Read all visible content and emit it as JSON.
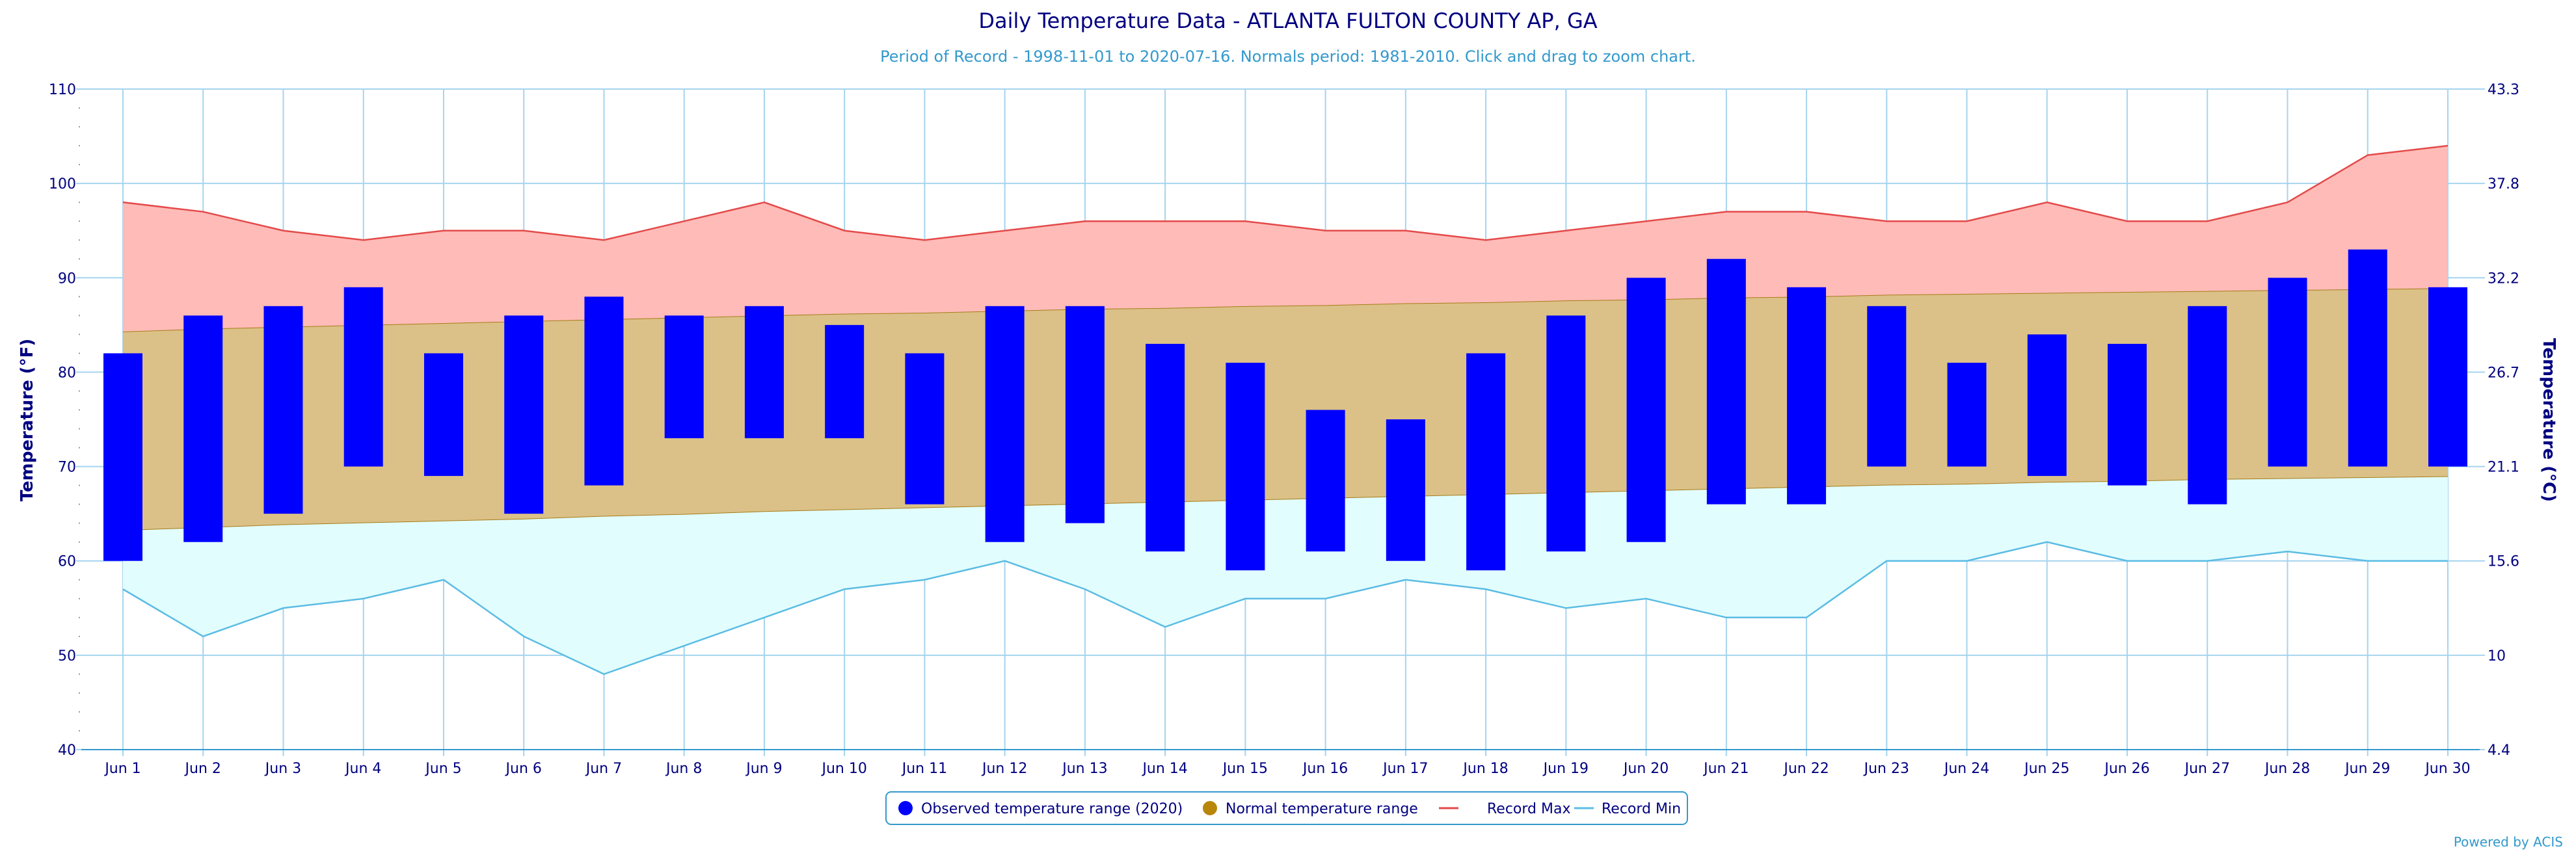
{
  "chart_data": {
    "type": "bar",
    "title": "Daily Temperature Data - ATLANTA FULTON COUNTY AP, GA",
    "subtitle": "Period of Record - 1998-11-01 to 2020-07-16. Normals period: 1981-2010. Click and drag to zoom chart.",
    "ylabel": "Temperature (°F)",
    "ylabel_right": "Temperature (°C)",
    "ylim": [
      40,
      110
    ],
    "yticks": [
      40,
      50,
      60,
      70,
      80,
      90,
      100,
      110
    ],
    "yticks_right": [
      "4.4",
      "10",
      "15.6",
      "21.1",
      "26.7",
      "32.2",
      "37.8",
      "43.3"
    ],
    "grid": true,
    "legend_position": "bottom-center",
    "categories": [
      "Jun 1",
      "Jun 2",
      "Jun 3",
      "Jun 4",
      "Jun 5",
      "Jun 6",
      "Jun 7",
      "Jun 8",
      "Jun 9",
      "Jun 10",
      "Jun 11",
      "Jun 12",
      "Jun 13",
      "Jun 14",
      "Jun 15",
      "Jun 16",
      "Jun 17",
      "Jun 18",
      "Jun 19",
      "Jun 20",
      "Jun 21",
      "Jun 22",
      "Jun 23",
      "Jun 24",
      "Jun 25",
      "Jun 26",
      "Jun 27",
      "Jun 28",
      "Jun 29",
      "Jun 30"
    ],
    "series": [
      {
        "name": "Observed temperature range (2020)",
        "type": "range-bar",
        "color": "#0000ff",
        "low": [
          60,
          62,
          65,
          70,
          69,
          65,
          68,
          73,
          73,
          73,
          66,
          62,
          64,
          61,
          59,
          61,
          60,
          59,
          61,
          62,
          66,
          66,
          70,
          70,
          69,
          68,
          66,
          70,
          70,
          70
        ],
        "high": [
          82,
          86,
          87,
          89,
          82,
          86,
          88,
          86,
          87,
          85,
          82,
          87,
          87,
          83,
          81,
          76,
          75,
          82,
          86,
          90,
          92,
          89,
          87,
          81,
          84,
          83,
          87,
          90,
          93,
          89
        ]
      },
      {
        "name": "Normal temperature range",
        "type": "range-area",
        "color": "#b8860b",
        "low": [
          63.2,
          63.5,
          63.8,
          64.0,
          64.2,
          64.4,
          64.7,
          64.9,
          65.2,
          65.4,
          65.6,
          65.8,
          66.0,
          66.2,
          66.4,
          66.6,
          66.8,
          67.0,
          67.2,
          67.4,
          67.6,
          67.8,
          68.0,
          68.1,
          68.3,
          68.4,
          68.6,
          68.7,
          68.8,
          68.9
        ],
        "high": [
          84.3,
          84.6,
          84.8,
          85.0,
          85.2,
          85.4,
          85.6,
          85.8,
          86.0,
          86.2,
          86.3,
          86.5,
          86.7,
          86.8,
          87.0,
          87.1,
          87.3,
          87.4,
          87.6,
          87.7,
          87.9,
          88.0,
          88.2,
          88.3,
          88.4,
          88.5,
          88.6,
          88.7,
          88.8,
          88.9
        ]
      },
      {
        "name": "Record Max",
        "type": "line",
        "color": "#e34a4a",
        "values": [
          98,
          97,
          95,
          94,
          95,
          95,
          94,
          96,
          98,
          95,
          94,
          95,
          96,
          96,
          96,
          95,
          95,
          94,
          95,
          96,
          97,
          97,
          96,
          96,
          98,
          96,
          96,
          98,
          103,
          104
        ]
      },
      {
        "name": "Record Min",
        "type": "line",
        "color": "#5bbce4",
        "values": [
          57,
          52,
          55,
          56,
          58,
          52,
          48,
          51,
          54,
          57,
          58,
          60,
          57,
          53,
          56,
          56,
          58,
          57,
          55,
          56,
          54,
          54,
          60,
          60,
          62,
          60,
          60,
          61,
          60,
          60
        ]
      }
    ]
  },
  "credit": "Powered by ACIS"
}
